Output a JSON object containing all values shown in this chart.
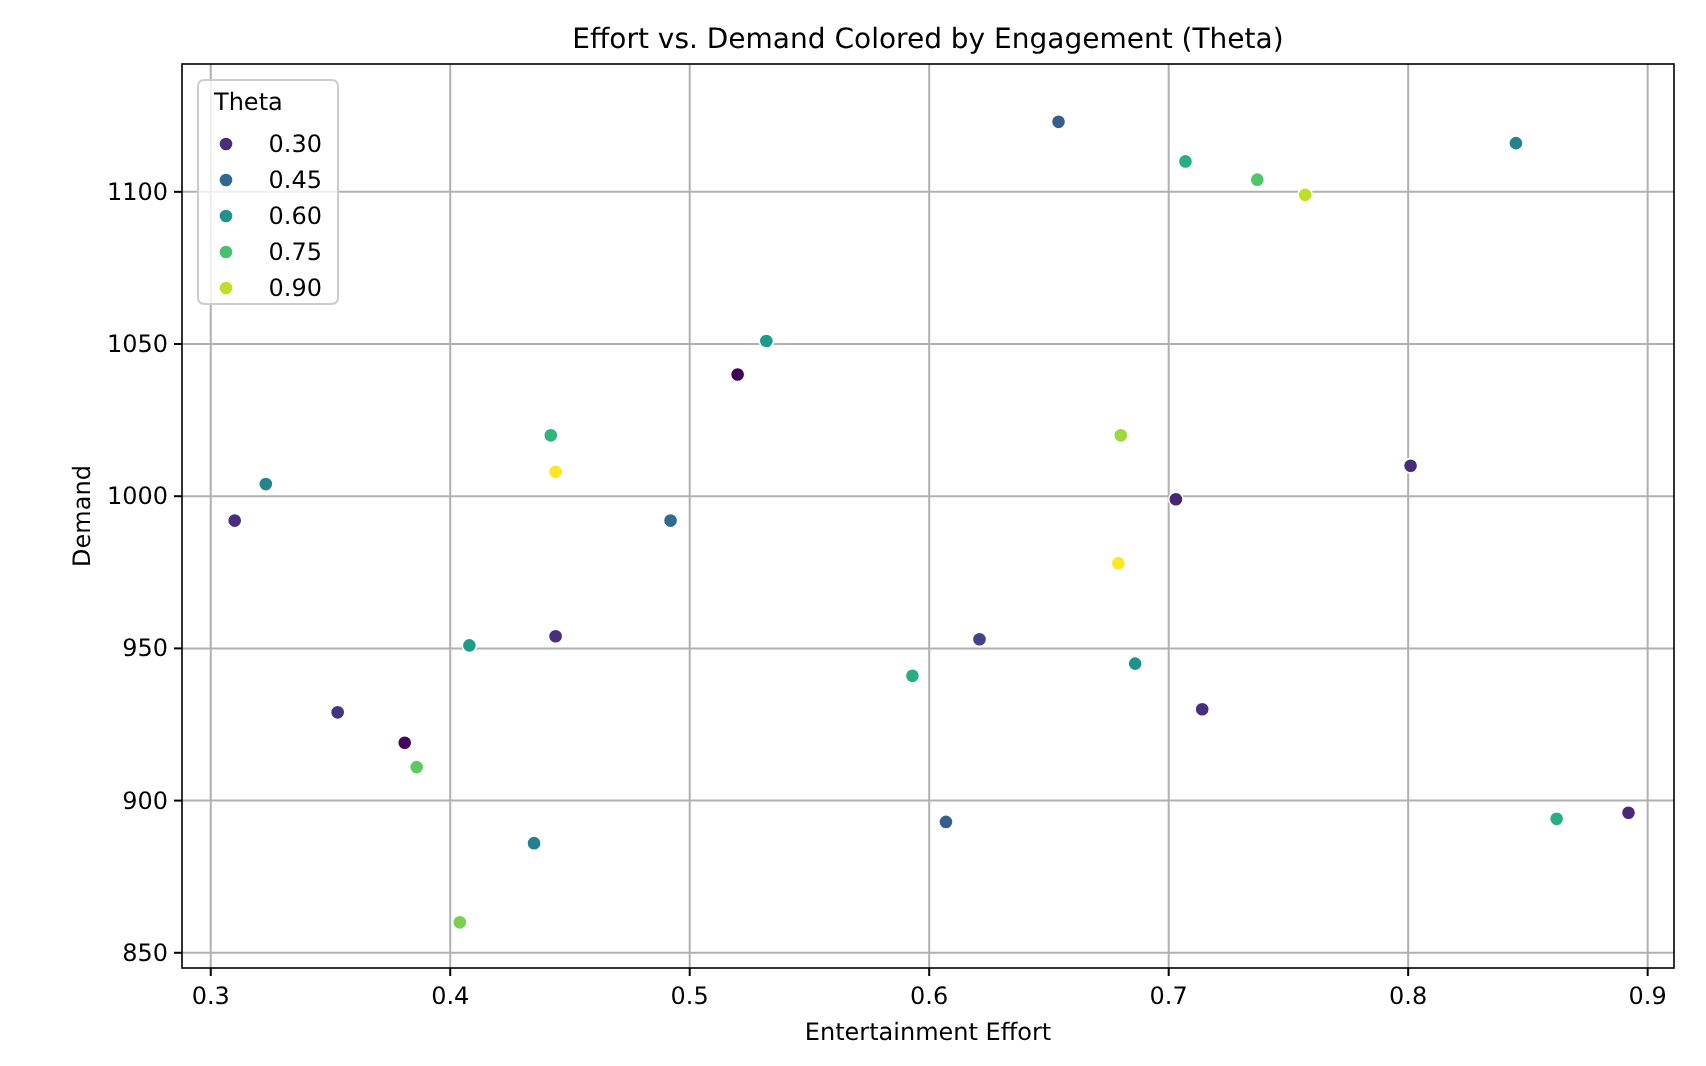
{
  "chart_data": {
    "type": "scatter",
    "title": "Effort vs. Demand Colored by Engagement (Theta)",
    "xlabel": "Entertainment Effort",
    "ylabel": "Demand",
    "legend_title": "Theta",
    "series": [
      {
        "name": "0.30",
        "color": "#472f7d",
        "x": [
          0.31,
          0.353,
          0.381,
          0.444,
          0.52,
          0.621,
          0.703,
          0.714,
          0.801,
          0.892
        ],
        "values": [
          992,
          929,
          919,
          954,
          1040,
          953,
          999,
          930,
          1010,
          896
        ],
        "colors": [
          "#472f7d",
          "#46337f",
          "#450559",
          "#46307e",
          "#440256",
          "#414487",
          "#482475",
          "#472f7d",
          "#472c7a",
          "#472a7a"
        ]
      },
      {
        "name": "0.45",
        "color": "#31688e",
        "x": [
          0.435,
          0.492,
          0.607,
          0.654,
          0.845
        ],
        "values": [
          886,
          992,
          893,
          1123,
          1116
        ],
        "colors": [
          "#27808e",
          "#2f6c8e",
          "#355f8d",
          "#355f8d",
          "#27808e"
        ]
      },
      {
        "name": "0.60",
        "color": "#20928c",
        "x": [
          0.323,
          0.408,
          0.532,
          0.686
        ],
        "values": [
          1004,
          951,
          1051,
          945
        ],
        "colors": [
          "#25848e",
          "#1e9c89",
          "#1e9c89",
          "#20928c"
        ]
      },
      {
        "name": "0.75",
        "color": "#48c16e",
        "x": [
          0.386,
          0.404,
          0.442,
          0.593,
          0.707,
          0.737,
          0.862
        ],
        "values": [
          911,
          860,
          1020,
          941,
          1110,
          1104,
          894
        ],
        "colors": [
          "#5ec962",
          "#7ad151",
          "#2fb47c",
          "#28ae80",
          "#28ae80",
          "#52c569",
          "#28ae80"
        ]
      },
      {
        "name": "0.90",
        "color": "#bddf26",
        "x": [
          0.444,
          0.68,
          0.679,
          0.757
        ],
        "values": [
          1008,
          1020,
          978,
          1099
        ],
        "colors": [
          "#fde725",
          "#9bd93c",
          "#fde725",
          "#bddf26"
        ]
      }
    ],
    "xlim": [
      0.288,
      0.911
    ],
    "ylim": [
      845,
      1142
    ],
    "xticks": [
      {
        "value": 0.3,
        "label": "0.3"
      },
      {
        "value": 0.4,
        "label": "0.4"
      },
      {
        "value": 0.5,
        "label": "0.5"
      },
      {
        "value": 0.6,
        "label": "0.6"
      },
      {
        "value": 0.7,
        "label": "0.7"
      },
      {
        "value": 0.8,
        "label": "0.8"
      },
      {
        "value": 0.9,
        "label": "0.9"
      }
    ],
    "yticks": [
      850,
      900,
      950,
      1000,
      1050,
      1100
    ],
    "grid": true,
    "legend": "top left",
    "marker": "circle"
  }
}
